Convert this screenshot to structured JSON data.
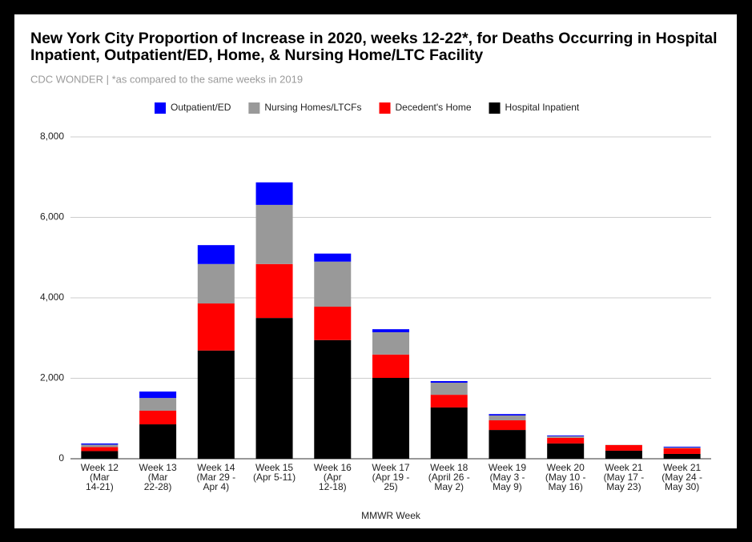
{
  "chart_data": {
    "type": "stacked_bar",
    "title": "New York City Proportion of Increase in 2020, weeks 12-22*, for Deaths Occurring in Hospital Inpatient, Outpatient/ED, Home, & Nursing Home/LTC Facility",
    "subtitle": "CDC WONDER | *as compared to the same weeks in 2019",
    "x_label": "MMWR Week",
    "categories": [
      "Week 12\n(Mar\n14-21)",
      "Week 13\n(Mar\n22-28)",
      "Week 14\n(Mar 29 -\nApr 4)",
      "Week 15\n(Apr 5-11)",
      "Week 16\n(Apr\n12-18)",
      "Week 17\n(Apr 19 -\n25)",
      "Week 18\n(April 26 -\nMay 2)",
      "Week 19\n(May 3 -\nMay 9)",
      "Week 20\n(May 10 -\nMay 16)",
      "Week 21\n(May 17 -\nMay 23)",
      "Week 21\n(May 24 -\nMay 30)"
    ],
    "series": [
      {
        "name": "Outpatient/ED",
        "color": "#0000ff",
        "values": [
          30,
          160,
          470,
          560,
          200,
          75,
          40,
          35,
          20,
          0,
          20
        ]
      },
      {
        "name": "Nursing Homes/LTCFs",
        "color": "#999999",
        "values": [
          60,
          315,
          980,
          1470,
          1120,
          555,
          300,
          120,
          40,
          5,
          20
        ]
      },
      {
        "name": "Decedent's Home",
        "color": "#ff0000",
        "values": [
          100,
          340,
          1170,
          1340,
          830,
          580,
          315,
          240,
          140,
          140,
          140
        ]
      },
      {
        "name": "Hospital Inpatient",
        "color": "#000000",
        "values": [
          190,
          855,
          2690,
          3500,
          2950,
          2010,
          1275,
          715,
          380,
          200,
          120
        ]
      }
    ],
    "ylim": [
      0,
      8000
    ],
    "yticks": [
      0,
      {
        "value": 2000,
        "label": "2,000"
      },
      {
        "value": 4000,
        "label": "4,000"
      },
      {
        "value": 6000,
        "label": "6,000"
      },
      {
        "value": 8000,
        "label": "8,000"
      }
    ],
    "grid": true,
    "legend": "top"
  }
}
